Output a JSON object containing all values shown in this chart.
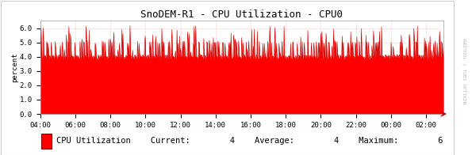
{
  "title": "SnoDEM-R1 - CPU Utilization - CPU0",
  "ylabel": "percent",
  "bg_color": "#ffffff",
  "plot_bg_color": "#ffffff",
  "grid_color": "#ddaaaa",
  "fill_color": "#ff0000",
  "line_color": "#cc0000",
  "ylim": [
    0.0,
    6.5
  ],
  "yticks": [
    0.0,
    1.0,
    2.0,
    3.0,
    4.0,
    5.0,
    6.0
  ],
  "xtick_labels": [
    "04:00",
    "06:00",
    "08:00",
    "10:00",
    "12:00",
    "14:00",
    "16:00",
    "18:00",
    "20:00",
    "22:00",
    "00:00",
    "02:00"
  ],
  "legend_label": "CPU Utilization",
  "current_val": "4",
  "average_val": "4",
  "maximum_val": "6",
  "base_value": 4.0,
  "rrdtool_text": "RRDTOOL / TOBI OETIKER",
  "title_fontsize": 9,
  "axis_fontsize": 6.5,
  "legend_fontsize": 7.5
}
